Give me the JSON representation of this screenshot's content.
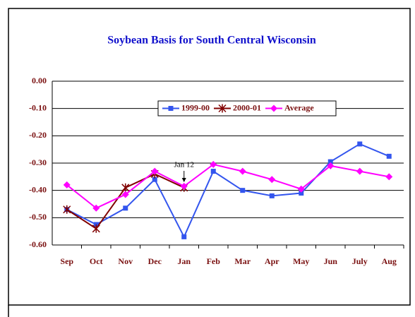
{
  "chart_data": {
    "type": "line",
    "title": "Soybean Basis for South Central Wisconsin",
    "categories": [
      "Sep",
      "Oct",
      "Nov",
      "Dec",
      "Jan",
      "Feb",
      "Mar",
      "Apr",
      "May",
      "Jun",
      "July",
      "Aug"
    ],
    "series": [
      {
        "name": "1999-00",
        "color": "#3355ee",
        "marker": "square",
        "values": [
          -0.47,
          -0.525,
          -0.465,
          -0.36,
          -0.57,
          -0.33,
          -0.4,
          -0.42,
          -0.41,
          -0.295,
          -0.23,
          -0.275
        ]
      },
      {
        "name": "2000-01",
        "color": "#800000",
        "marker": "asterisk",
        "values": [
          -0.47,
          -0.54,
          -0.39,
          -0.34,
          -0.39,
          null,
          null,
          null,
          null,
          null,
          null,
          null
        ]
      },
      {
        "name": "Average",
        "color": "#ff00ff",
        "marker": "diamond",
        "values": [
          -0.38,
          -0.465,
          -0.415,
          -0.33,
          -0.385,
          -0.305,
          -0.33,
          -0.36,
          -0.395,
          -0.31,
          -0.33,
          -0.35
        ]
      }
    ],
    "ylim": [
      -0.6,
      0
    ],
    "yticks": [
      {
        "value": 0,
        "label": "0.00"
      },
      {
        "value": -0.1,
        "label": "-0.10"
      },
      {
        "value": -0.2,
        "label": "-0.20"
      },
      {
        "value": -0.3,
        "label": "-0.30"
      },
      {
        "value": -0.4,
        "label": "-0.40"
      },
      {
        "value": -0.5,
        "label": "-0.50"
      },
      {
        "value": -0.6,
        "label": "-0.60"
      }
    ],
    "grid": true,
    "annotation": {
      "text": "Jan 12",
      "category": 4,
      "value": -0.375
    }
  }
}
